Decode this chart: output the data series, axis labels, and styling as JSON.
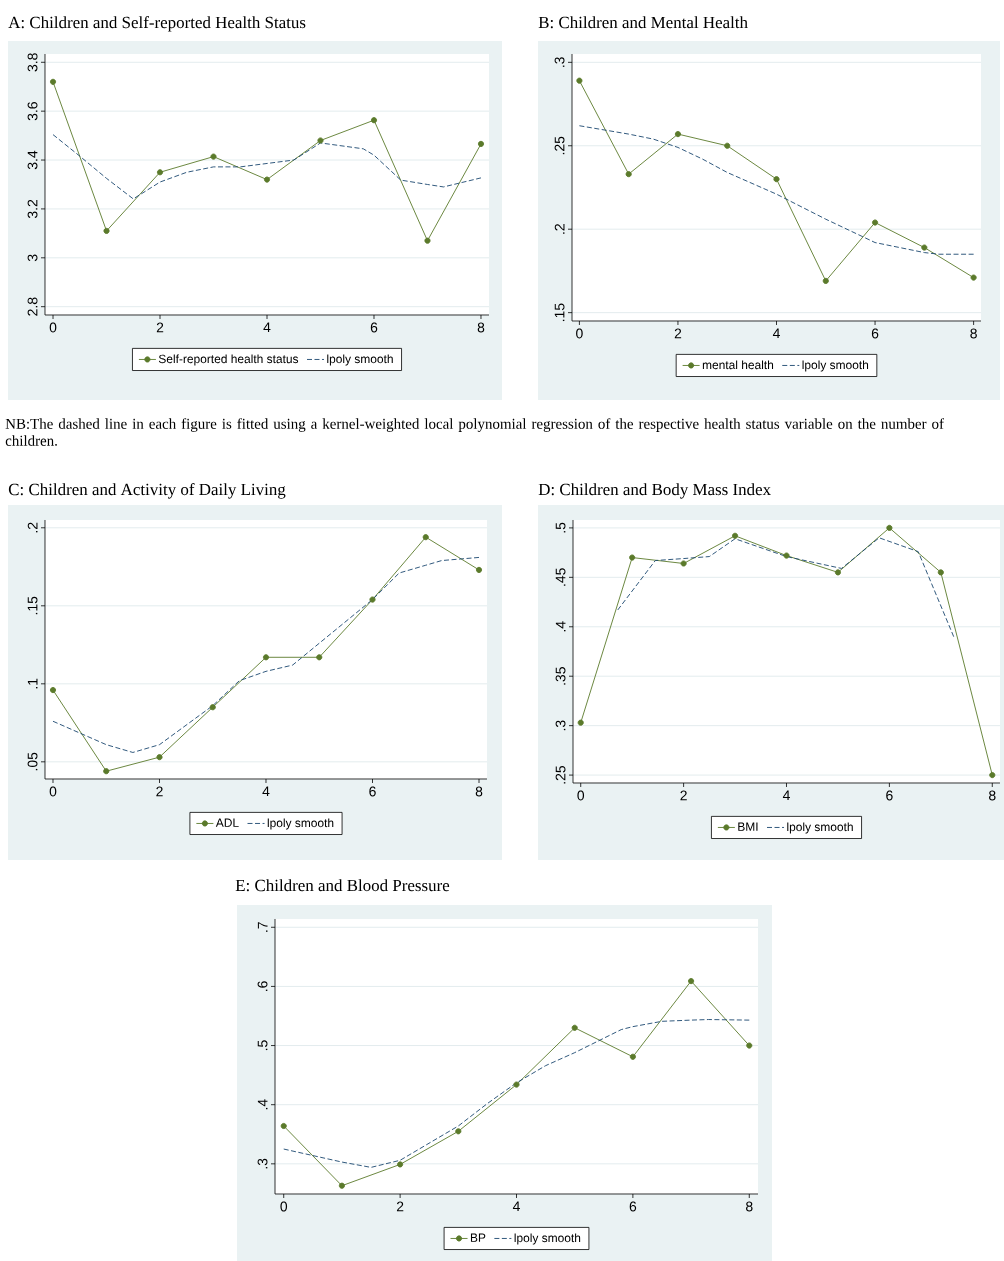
{
  "chart_data": [
    {
      "type": "line",
      "title": "A: Children and Self-reported Health Status",
      "x": [
        0,
        1,
        2,
        3,
        4,
        5,
        6,
        7,
        8
      ],
      "series": [
        {
          "name": "Self-reported health status",
          "color": "#5b7a2b",
          "marker": "circle",
          "line_style": "solid",
          "values": [
            3.72,
            3.11,
            3.35,
            3.414,
            3.32,
            3.48,
            3.563,
            3.07,
            3.466
          ]
        },
        {
          "name": "lpoly smooth",
          "color": "#1a476f",
          "marker": "none",
          "line_style": "dashed",
          "x": [
            0,
            0.5,
            1,
            1.5,
            2,
            2.5,
            3,
            3.5,
            4,
            4.5,
            5,
            5.8,
            6,
            6.5,
            7,
            7.3,
            8
          ],
          "values": [
            3.504,
            3.416,
            3.325,
            3.241,
            3.31,
            3.35,
            3.372,
            3.372,
            3.386,
            3.4,
            3.47,
            3.446,
            3.42,
            3.318,
            3.3,
            3.29,
            3.327
          ]
        }
      ],
      "xlim": [
        -0.15,
        8.15
      ],
      "ylim": [
        2.766,
        3.834
      ],
      "xticks": [
        0,
        2,
        4,
        6,
        8
      ],
      "yticks": [
        2.8,
        3,
        3.2,
        3.4,
        3.6,
        3.8
      ],
      "grid": "y",
      "legend": "bottom",
      "annotations": [
        "NB:The dashed line in each figure is fitted using a kernel-weighted local polynomial regression of the respective health status variable on the number of children."
      ]
    },
    {
      "type": "line",
      "title": "B: Children and Mental Health",
      "x": [
        0,
        1,
        2,
        3,
        4,
        5,
        6,
        7,
        8
      ],
      "series": [
        {
          "name": "mental health",
          "color": "#5b7a2b",
          "marker": "circle",
          "line_style": "solid",
          "values": [
            0.289,
            0.233,
            0.257,
            0.25,
            0.23,
            0.169,
            0.204,
            0.189,
            0.171
          ]
        },
        {
          "name": "lpoly smooth",
          "color": "#1a476f",
          "marker": "none",
          "line_style": "dashed",
          "x": [
            0,
            1,
            1.5,
            2,
            2.5,
            3,
            4,
            5,
            6,
            7,
            7.3,
            8
          ],
          "values": [
            0.262,
            0.257,
            0.254,
            0.249,
            0.242,
            0.234,
            0.221,
            0.206,
            0.192,
            0.186,
            0.185,
            0.185
          ]
        }
      ],
      "xlim": [
        -0.15,
        8.15
      ],
      "ylim": [
        0.145,
        0.305
      ],
      "xticks": [
        0,
        2,
        4,
        6,
        8
      ],
      "yticks": [
        {
          "value": 0.15,
          "label": ".15"
        },
        {
          "value": 0.2,
          "label": ".2"
        },
        {
          "value": 0.25,
          "label": ".25"
        },
        {
          "value": 0.3,
          "label": ".3"
        }
      ],
      "grid": "y",
      "legend": "bottom"
    },
    {
      "type": "line",
      "title": "C: Children and Activity of Daily Living",
      "x": [
        0,
        1,
        2,
        3,
        4,
        5,
        6,
        7,
        8
      ],
      "series": [
        {
          "name": "ADL",
          "color": "#5b7a2b",
          "marker": "circle",
          "line_style": "solid",
          "values": [
            0.096,
            0.044,
            0.053,
            0.085,
            0.117,
            0.117,
            0.154,
            0.194,
            0.173
          ]
        },
        {
          "name": "lpoly smooth",
          "color": "#1a476f",
          "marker": "none",
          "line_style": "dashed",
          "x": [
            0,
            1,
            1.5,
            2,
            3,
            3.5,
            4,
            4.5,
            5,
            6,
            6.5,
            7,
            7.3,
            8
          ],
          "values": [
            0.076,
            0.061,
            0.056,
            0.061,
            0.086,
            0.102,
            0.108,
            0.112,
            0.126,
            0.154,
            0.171,
            0.176,
            0.179,
            0.181
          ]
        }
      ],
      "xlim": [
        -0.15,
        8.15
      ],
      "ylim": [
        0.039,
        0.205
      ],
      "xticks": [
        0,
        2,
        4,
        6,
        8
      ],
      "yticks": [
        {
          "value": 0.05,
          "label": ".05"
        },
        {
          "value": 0.1,
          "label": ".1"
        },
        {
          "value": 0.15,
          "label": ".15"
        },
        {
          "value": 0.2,
          "label": ".2"
        }
      ],
      "grid": "y",
      "legend": "bottom"
    },
    {
      "type": "line",
      "title": "D: Children and Body Mass Index",
      "x": [
        0,
        1,
        2,
        3,
        4,
        5,
        6,
        7,
        8
      ],
      "series": [
        {
          "name": "BMI",
          "color": "#5b7a2b",
          "marker": "circle",
          "line_style": "solid",
          "values": [
            0.303,
            0.47,
            0.464,
            0.492,
            0.472,
            0.455,
            0.5,
            0.455,
            0.25
          ]
        },
        {
          "name": "lpoly smooth",
          "color": "#1a476f",
          "marker": "none",
          "line_style": "dashed",
          "x": [
            0.72,
            1.45,
            2,
            2.5,
            3,
            4,
            5.07,
            5.8,
            6.56,
            7.25
          ],
          "values": [
            0.417,
            0.467,
            0.469,
            0.471,
            0.489,
            0.471,
            0.459,
            0.49,
            0.476,
            0.39
          ]
        }
      ],
      "xlim": [
        -0.15,
        8.15
      ],
      "ylim": [
        0.242,
        0.508
      ],
      "xticks": [
        0,
        2,
        4,
        6,
        8
      ],
      "yticks": [
        {
          "value": 0.25,
          "label": ".25"
        },
        {
          "value": 0.3,
          "label": ".3"
        },
        {
          "value": 0.35,
          "label": ".35"
        },
        {
          "value": 0.4,
          "label": ".4"
        },
        {
          "value": 0.45,
          "label": ".45"
        },
        {
          "value": 0.5,
          "label": ".5"
        }
      ],
      "grid": "y",
      "legend": "bottom"
    },
    {
      "type": "line",
      "title": "E: Children and Blood Pressure",
      "x": [
        0,
        1,
        2,
        3,
        4,
        5,
        6,
        7,
        8
      ],
      "series": [
        {
          "name": "BP",
          "color": "#5b7a2b",
          "marker": "circle",
          "line_style": "solid",
          "values": [
            0.364,
            0.263,
            0.299,
            0.355,
            0.434,
            0.53,
            0.481,
            0.609,
            0.5
          ]
        },
        {
          "name": "lpoly smooth",
          "color": "#1a476f",
          "marker": "none",
          "line_style": "dashed",
          "x": [
            0,
            1,
            1.5,
            2,
            3,
            3.5,
            4,
            4.5,
            5,
            5.8,
            6,
            6.5,
            7,
            7.3,
            8
          ],
          "values": [
            0.325,
            0.303,
            0.294,
            0.306,
            0.364,
            0.402,
            0.437,
            0.466,
            0.488,
            0.527,
            0.532,
            0.541,
            0.543,
            0.544,
            0.543
          ]
        }
      ],
      "xlim": [
        -0.15,
        8.15
      ],
      "ylim": [
        0.249,
        0.714
      ],
      "xticks": [
        0,
        2,
        4,
        6,
        8
      ],
      "yticks": [
        {
          "value": 0.3,
          "label": ".3"
        },
        {
          "value": 0.4,
          "label": ".4"
        },
        {
          "value": 0.5,
          "label": ".5"
        },
        {
          "value": 0.6,
          "label": ".6"
        },
        {
          "value": 0.7,
          "label": ".7"
        }
      ],
      "grid": "y",
      "legend": "bottom"
    }
  ]
}
